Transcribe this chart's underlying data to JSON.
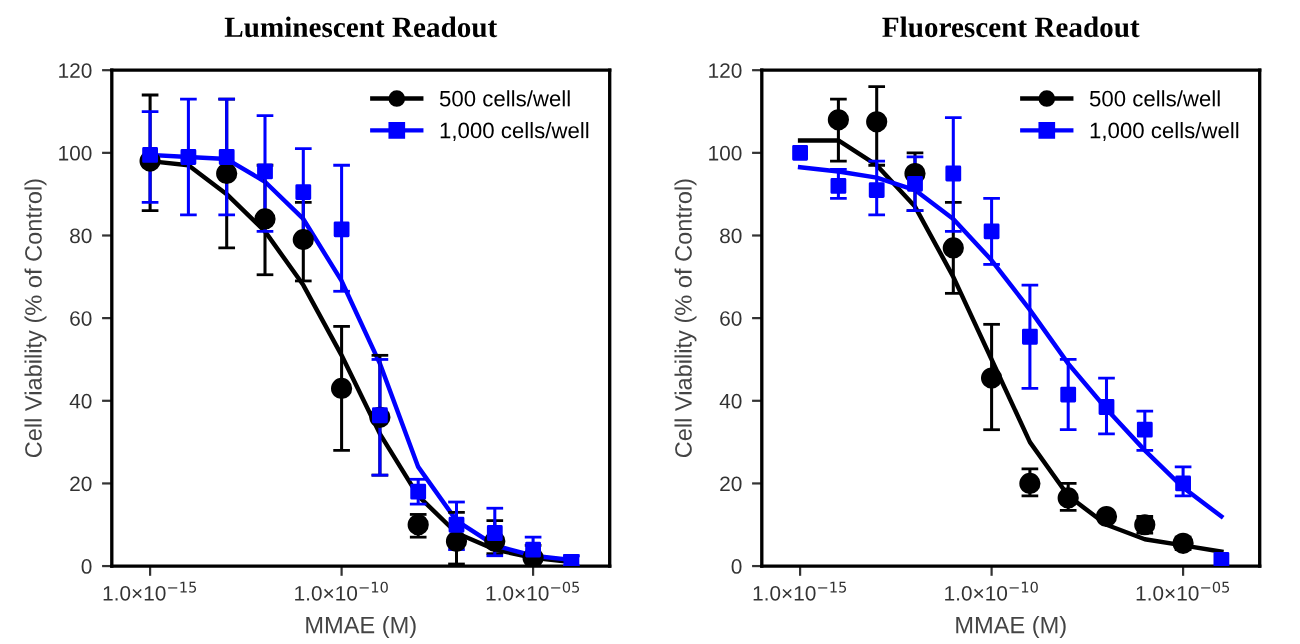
{
  "chart_data": [
    {
      "type": "scatter",
      "title": "Luminescent Readout",
      "xlabel": "MMAE (M)",
      "ylabel": "Cell Viability (% of Control)",
      "log": "x",
      "xlim": [
        1e-16,
        0.001
      ],
      "ylim": [
        0,
        120
      ],
      "xticks": [
        {
          "value": 1e-15,
          "label": "1.0×10$^{−15}$"
        },
        {
          "value": 1e-10,
          "label": "1.0×10$^{−10}$"
        },
        {
          "value": 1e-05,
          "label": "1.0×10$^{−05}$"
        }
      ],
      "yticks": [
        0,
        20,
        40,
        60,
        80,
        100,
        120
      ],
      "grid": false,
      "legend": "top right",
      "x": [
        1e-15,
        1e-14,
        1e-13,
        1e-12,
        1e-11,
        1e-10,
        1e-09,
        1e-08,
        1e-07,
        1e-06,
        1e-05,
        0.0001
      ],
      "series": [
        {
          "name": "500 cells/well",
          "color": "#000000",
          "marker": "circle",
          "values": [
            98,
            null,
            95,
            84,
            79,
            43,
            36,
            10,
            6,
            6,
            2,
            null
          ],
          "errors": [
            [
              86,
              114
            ],
            null,
            [
              77,
              113
            ],
            [
              70.5,
              97
            ],
            [
              69,
              88
            ],
            [
              28,
              58
            ],
            [
              22,
              51
            ],
            [
              7,
              12.5
            ],
            [
              0.5,
              13
            ],
            [
              3,
              11
            ],
            [
              0,
              5
            ],
            null
          ]
        },
        {
          "name": "1,000 cells/well",
          "color": "#0000ff",
          "marker": "square",
          "values": [
            99.5,
            99,
            99,
            95.5,
            90.5,
            81.5,
            36.5,
            18,
            10,
            8,
            4,
            1
          ],
          "errors": [
            [
              88,
              110
            ],
            [
              85,
              113
            ],
            [
              85,
              113
            ],
            [
              81,
              109
            ],
            [
              80,
              101
            ],
            [
              66.5,
              97
            ],
            [
              22,
              50
            ],
            [
              15,
              21
            ],
            [
              4,
              15.5
            ],
            [
              2.5,
              14
            ],
            [
              1,
              7
            ],
            [
              0,
              2.5
            ]
          ]
        },
        {
          "type": "line",
          "color": "#000000",
          "line_style": "solid",
          "marker": "none",
          "values": [
            98,
            97,
            90,
            81,
            68,
            51,
            32,
            17,
            8,
            4,
            2,
            1
          ]
        },
        {
          "type": "line",
          "color": "#0000ff",
          "line_style": "solid",
          "marker": "none",
          "values": [
            99.5,
            99,
            98.5,
            93,
            84,
            69,
            49,
            24,
            11,
            5,
            2.5,
            1.5
          ]
        }
      ]
    },
    {
      "type": "scatter",
      "title": "Fluorescent Readout",
      "xlabel": "MMAE (M)",
      "ylabel": "Cell Viability (% of Control)",
      "log": "x",
      "xlim": [
        1e-16,
        0.001
      ],
      "ylim": [
        0,
        120
      ],
      "xticks": [
        {
          "value": 1e-15,
          "label": "1.0×10$^{−15}$"
        },
        {
          "value": 1e-10,
          "label": "1.0×10$^{−10}$"
        },
        {
          "value": 1e-05,
          "label": "1.0×10$^{−05}$"
        }
      ],
      "yticks": [
        0,
        20,
        40,
        60,
        80,
        100,
        120
      ],
      "grid": false,
      "legend": "top right",
      "x": [
        1e-15,
        1e-14,
        1e-13,
        1e-12,
        1e-11,
        1e-10,
        1e-09,
        1e-08,
        1e-07,
        1e-06,
        1e-05,
        0.0001
      ],
      "series": [
        {
          "name": "500 cells/well",
          "color": "#000000",
          "marker": "circle",
          "values": [
            null,
            108,
            107.5,
            95,
            77,
            45.5,
            20,
            16.5,
            12,
            10,
            5.5,
            null
          ],
          "errors": [
            null,
            [
              98,
              113
            ],
            [
              97,
              116
            ],
            [
              86,
              100
            ],
            [
              66,
              88
            ],
            [
              33,
              58.5
            ],
            [
              17,
              23.5
            ],
            [
              13.5,
              20
            ],
            [
              11,
              13
            ],
            [
              8,
              12
            ],
            [
              4,
              7
            ],
            null
          ]
        },
        {
          "name": "1,000 cells/well",
          "color": "#0000ff",
          "marker": "square",
          "values": [
            100,
            92,
            91,
            92.5,
            95,
            81,
            55.5,
            41.5,
            38.5,
            33,
            20,
            1.5
          ],
          "errors": [
            null,
            [
              89,
              96
            ],
            [
              85,
              98
            ],
            [
              86,
              99
            ],
            [
              81,
              108.5
            ],
            [
              73,
              89
            ],
            [
              43,
              68
            ],
            [
              33,
              50
            ],
            [
              32,
              45.5
            ],
            [
              28,
              37.5
            ],
            [
              17,
              24
            ],
            null
          ]
        },
        {
          "type": "line",
          "color": "#000000",
          "line_style": "solid",
          "marker": "none",
          "values": [
            103,
            103,
            97,
            87,
            70,
            50,
            30,
            17,
            10,
            6.5,
            5,
            3.5
          ]
        },
        {
          "type": "line",
          "color": "#0000ff",
          "line_style": "solid",
          "marker": "none",
          "values": [
            96.5,
            95.5,
            94,
            91,
            84,
            74,
            62,
            49,
            38,
            28,
            19,
            12
          ]
        }
      ]
    }
  ]
}
